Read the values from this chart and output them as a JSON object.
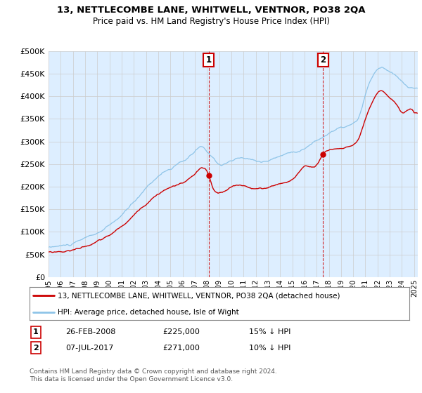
{
  "title": "13, NETTLECOMBE LANE, WHITWELL, VENTNOR, PO38 2QA",
  "subtitle": "Price paid vs. HM Land Registry's House Price Index (HPI)",
  "legend_line1": "13, NETTLECOMBE LANE, WHITWELL, VENTNOR, PO38 2QA (detached house)",
  "legend_line2": "HPI: Average price, detached house, Isle of Wight",
  "annotation1_label": "1",
  "annotation1_date": "26-FEB-2008",
  "annotation1_price": "£225,000",
  "annotation1_note": "15% ↓ HPI",
  "annotation1_year": 2008.15,
  "annotation1_value": 225000,
  "annotation2_label": "2",
  "annotation2_date": "07-JUL-2017",
  "annotation2_price": "£271,000",
  "annotation2_note": "10% ↓ HPI",
  "annotation2_year": 2017.52,
  "annotation2_value": 271000,
  "hpi_color": "#8ec4e8",
  "price_color": "#cc0000",
  "annotation_color": "#cc0000",
  "grid_color": "#cccccc",
  "background_color": "#ddeeff",
  "plot_bg_color": "#ffffff",
  "ylim": [
    0,
    500000
  ],
  "xlim_start": 1995.0,
  "xlim_end": 2025.3,
  "footer": "Contains HM Land Registry data © Crown copyright and database right 2024.\nThis data is licensed under the Open Government Licence v3.0."
}
